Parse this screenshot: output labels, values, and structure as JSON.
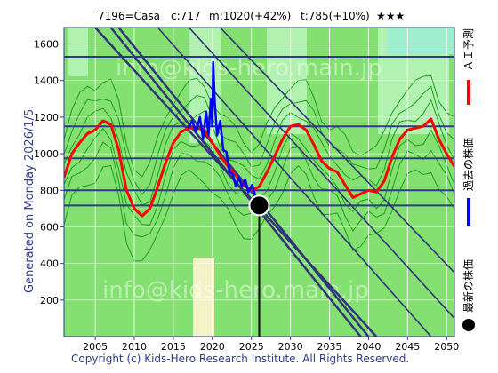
{
  "header": {
    "code": "7196=Casa",
    "current": "c:717",
    "mid": "m:1020(+42%)",
    "target": "t:785(+10%)",
    "stars": "★★★"
  },
  "side_caption": "Generated on Monday 2026/1/5.",
  "footer": "Copyright (c) Kids-Hero Research Institute. All Rights Reserved.",
  "watermarks": [
    "info@kids-hero.main.jp",
    "info@kids-hero.main.jp"
  ],
  "legend": [
    {
      "label": "ＡＩ予測",
      "color": "#ff0000",
      "marker": "line"
    },
    {
      "label": "過去の株価",
      "color": "#0000ff",
      "marker": "line"
    },
    {
      "label": "最新の株価",
      "color": "#000000",
      "marker": "dot"
    }
  ],
  "colors": {
    "background_green": "#84e070",
    "band_light": "#b2f2b0",
    "band_cyan": "#9feed0",
    "band_cream": "#f4f3c8",
    "grid_line": "#303a8a",
    "trend_line": "#30357a",
    "ai_line": "#ff0000",
    "past_line": "#0000ff",
    "latest_marker": "#000000",
    "envelope_line": "#1aa01a",
    "axis_text": "#303a8a"
  },
  "chart_data": {
    "type": "line",
    "x_ticks": [
      2005,
      2010,
      2015,
      2020,
      2025,
      2030,
      2035,
      2040,
      2045,
      2050
    ],
    "y_ticks": [
      200,
      400,
      600,
      800,
      1000,
      1200,
      1400,
      1600
    ],
    "xlim": [
      2001,
      2051
    ],
    "ylim": [
      0,
      1690
    ],
    "horizontal_levels": [
      1530,
      1150,
      975,
      800,
      717
    ],
    "latest_point": {
      "x": 2026.0,
      "y": 717
    },
    "series": [
      {
        "name": "ＡＩ予測",
        "points": [
          [
            2001,
            870
          ],
          [
            2002,
            1000
          ],
          [
            2003,
            1060
          ],
          [
            2004,
            1110
          ],
          [
            2005,
            1130
          ],
          [
            2006,
            1180
          ],
          [
            2007,
            1160
          ],
          [
            2008,
            1020
          ],
          [
            2009,
            800
          ],
          [
            2010,
            700
          ],
          [
            2011,
            660
          ],
          [
            2012,
            700
          ],
          [
            2013,
            820
          ],
          [
            2014,
            950
          ],
          [
            2015,
            1060
          ],
          [
            2016,
            1120
          ],
          [
            2017,
            1140
          ],
          [
            2018,
            1140
          ],
          [
            2019,
            1130
          ],
          [
            2020,
            1060
          ],
          [
            2021,
            990
          ],
          [
            2022,
            930
          ],
          [
            2023,
            880
          ],
          [
            2024,
            830
          ],
          [
            2025,
            800
          ],
          [
            2026,
            820
          ],
          [
            2027,
            900
          ],
          [
            2028,
            990
          ],
          [
            2029,
            1080
          ],
          [
            2030,
            1150
          ],
          [
            2031,
            1160
          ],
          [
            2032,
            1130
          ],
          [
            2033,
            1050
          ],
          [
            2034,
            960
          ],
          [
            2035,
            920
          ],
          [
            2036,
            900
          ],
          [
            2037,
            830
          ],
          [
            2038,
            760
          ],
          [
            2039,
            780
          ],
          [
            2040,
            800
          ],
          [
            2041,
            790
          ],
          [
            2042,
            850
          ],
          [
            2043,
            980
          ],
          [
            2044,
            1080
          ],
          [
            2045,
            1130
          ],
          [
            2046,
            1140
          ],
          [
            2047,
            1150
          ],
          [
            2048,
            1190
          ],
          [
            2049,
            1080
          ],
          [
            2050,
            1000
          ],
          [
            2051,
            930
          ]
        ]
      },
      {
        "name": "過去の株価",
        "points": [
          [
            2016.9,
            1140
          ],
          [
            2017.4,
            1180
          ],
          [
            2017.9,
            1120
          ],
          [
            2018.4,
            1200
          ],
          [
            2018.8,
            1080
          ],
          [
            2019.2,
            1230
          ],
          [
            2019.5,
            1100
          ],
          [
            2019.8,
            1300
          ],
          [
            2020.0,
            1150
          ],
          [
            2020.1,
            1500
          ],
          [
            2020.3,
            1280
          ],
          [
            2020.6,
            1100
          ],
          [
            2021.0,
            1180
          ],
          [
            2021.4,
            1020
          ],
          [
            2021.8,
            1010
          ],
          [
            2022.2,
            900
          ],
          [
            2022.6,
            890
          ],
          [
            2023.0,
            820
          ],
          [
            2023.4,
            870
          ],
          [
            2023.8,
            820
          ],
          [
            2024.2,
            860
          ],
          [
            2024.6,
            790
          ],
          [
            2025.1,
            830
          ],
          [
            2025.5,
            770
          ],
          [
            2026.0,
            730
          ]
        ]
      }
    ]
  }
}
